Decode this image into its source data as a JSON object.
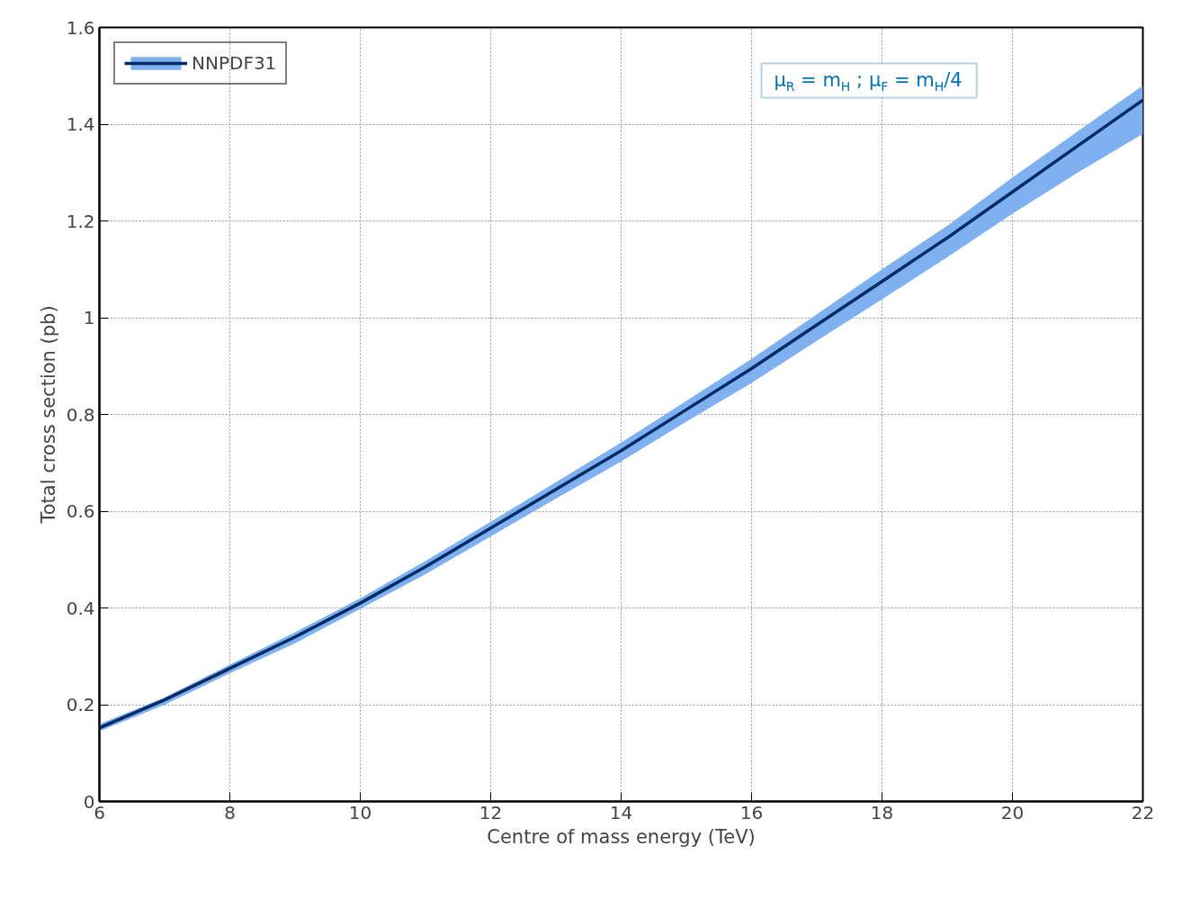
{
  "chart_data": {
    "type": "line",
    "xlabel": "Centre of mass energy (TeV)",
    "ylabel": "Total cross section (pb)",
    "x": [
      6,
      7,
      8,
      9,
      10,
      11,
      12,
      13,
      14,
      15,
      16,
      17,
      18,
      19,
      20,
      21,
      22
    ],
    "series": [
      {
        "name": "NNPDF31",
        "color": "#002b66",
        "values": [
          0.152,
          0.21,
          0.275,
          0.34,
          0.41,
          0.485,
          0.565,
          0.645,
          0.725,
          0.81,
          0.895,
          0.985,
          1.075,
          1.165,
          1.26,
          1.355,
          1.45
        ],
        "upper": [
          0.16,
          0.215,
          0.283,
          0.35,
          0.42,
          0.497,
          0.578,
          0.66,
          0.742,
          0.828,
          0.915,
          1.007,
          1.1,
          1.19,
          1.29,
          1.385,
          1.48
        ],
        "lower": [
          0.145,
          0.2,
          0.265,
          0.327,
          0.398,
          0.47,
          0.548,
          0.626,
          0.703,
          0.785,
          0.865,
          0.952,
          1.038,
          1.125,
          1.215,
          1.3,
          1.38
        ]
      }
    ],
    "xlim": [
      6,
      22
    ],
    "ylim": [
      0,
      1.6
    ],
    "xticks": [
      6,
      8,
      10,
      12,
      14,
      16,
      18,
      20,
      22
    ],
    "yticks": [
      0,
      0.2,
      0.4,
      0.6,
      0.8,
      1,
      1.2,
      1.4,
      1.6
    ],
    "annotations": [
      "μ$_{R}$ = m$_{H}$ ; μ$_{F}$ = m$_{H}$/4"
    ],
    "grid": true,
    "legend": "top left",
    "line_style": "solid",
    "marker": "none"
  }
}
